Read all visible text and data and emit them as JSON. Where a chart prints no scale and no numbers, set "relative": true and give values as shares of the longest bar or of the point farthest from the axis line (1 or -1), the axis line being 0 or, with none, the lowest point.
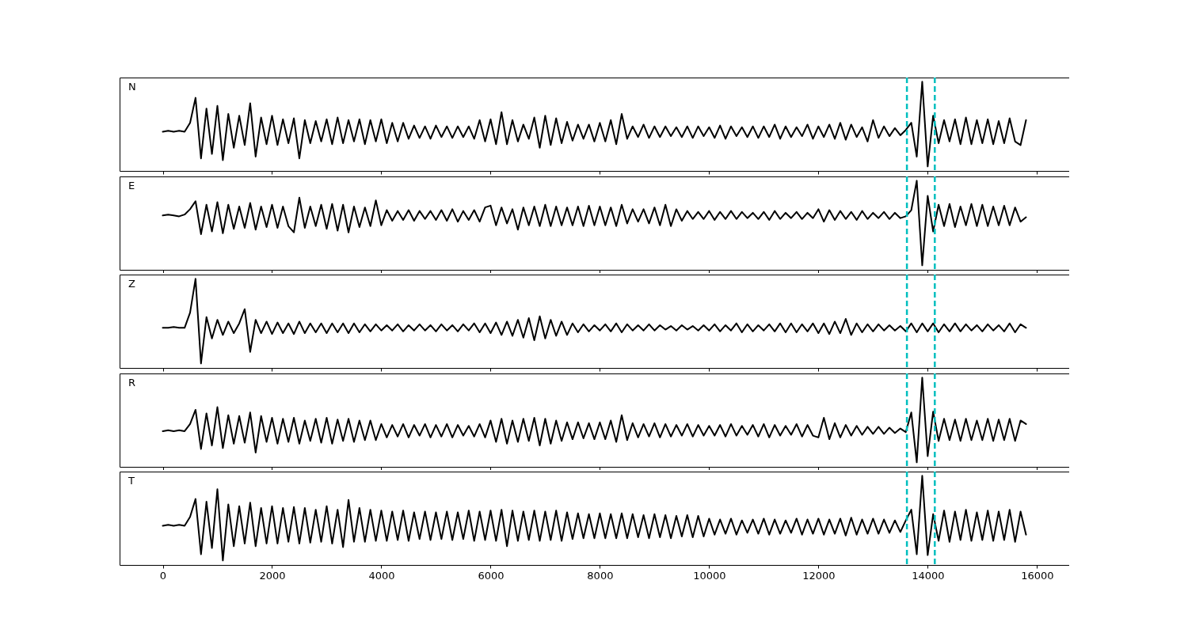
{
  "chart_data": [
    {
      "type": "line",
      "title": "N",
      "relative": true,
      "xlim": [
        -790,
        16590
      ],
      "xticks": [
        0,
        2000,
        4000,
        6000,
        8000,
        10000,
        12000,
        14000,
        16000
      ],
      "tick_labels": false,
      "ref_lines": [
        {
          "axis": "x",
          "value": 13620,
          "color": "#00bfbf",
          "line_style": "dashed"
        },
        {
          "axis": "x",
          "value": 14130,
          "color": "#00bfbf",
          "line_style": "dashed"
        }
      ],
      "x": [
        0,
        100,
        200,
        300,
        400,
        500,
        600,
        700,
        800,
        900,
        1000,
        1100,
        1200,
        1300,
        1400,
        1500,
        1600,
        1700,
        1800,
        1900,
        2000,
        2100,
        2200,
        2300,
        2400,
        2500,
        2600,
        2700,
        2800,
        2900,
        3000,
        3100,
        3200,
        3300,
        3400,
        3500,
        3600,
        3700,
        3800,
        3900,
        4000,
        4100,
        4200,
        4300,
        4400,
        4500,
        4600,
        4700,
        4800,
        4900,
        5000,
        5100,
        5200,
        5300,
        5400,
        5500,
        5600,
        5700,
        5800,
        5900,
        6000,
        6100,
        6200,
        6300,
        6400,
        6500,
        6600,
        6700,
        6800,
        6900,
        7000,
        7100,
        7200,
        7300,
        7400,
        7500,
        7600,
        7700,
        7800,
        7900,
        8000,
        8100,
        8200,
        8300,
        8400,
        8500,
        8600,
        8700,
        8800,
        8900,
        9000,
        9100,
        9200,
        9300,
        9400,
        9500,
        9600,
        9700,
        9800,
        9900,
        10000,
        10100,
        10200,
        10300,
        10400,
        10500,
        10600,
        10700,
        10800,
        10900,
        11000,
        11100,
        11200,
        11300,
        11400,
        11500,
        11600,
        11700,
        11800,
        11900,
        12000,
        12100,
        12200,
        12300,
        12400,
        12500,
        12600,
        12700,
        12800,
        12900,
        13000,
        13100,
        13200,
        13300,
        13400,
        13500,
        13600,
        13700,
        13800,
        13900,
        14000,
        14100,
        14200,
        14300,
        14400,
        14500,
        14600,
        14700,
        14800,
        14900,
        15000,
        15100,
        15200,
        15300,
        15400,
        15500,
        15600,
        15700,
        15800
      ],
      "series": [
        {
          "color": "#000000",
          "values": [
            0.44,
            0.45,
            0.44,
            0.45,
            0.44,
            0.54,
            0.82,
            0.14,
            0.7,
            0.19,
            0.73,
            0.12,
            0.64,
            0.26,
            0.62,
            0.29,
            0.76,
            0.16,
            0.6,
            0.3,
            0.62,
            0.29,
            0.58,
            0.31,
            0.59,
            0.14,
            0.57,
            0.31,
            0.56,
            0.33,
            0.58,
            0.3,
            0.6,
            0.31,
            0.57,
            0.33,
            0.58,
            0.3,
            0.57,
            0.33,
            0.58,
            0.31,
            0.54,
            0.33,
            0.54,
            0.36,
            0.51,
            0.37,
            0.5,
            0.36,
            0.51,
            0.38,
            0.5,
            0.37,
            0.5,
            0.38,
            0.5,
            0.36,
            0.57,
            0.33,
            0.58,
            0.3,
            0.66,
            0.3,
            0.57,
            0.33,
            0.52,
            0.36,
            0.6,
            0.26,
            0.62,
            0.29,
            0.59,
            0.31,
            0.55,
            0.34,
            0.52,
            0.36,
            0.52,
            0.33,
            0.54,
            0.33,
            0.57,
            0.3,
            0.64,
            0.36,
            0.5,
            0.38,
            0.52,
            0.37,
            0.5,
            0.38,
            0.5,
            0.39,
            0.49,
            0.38,
            0.5,
            0.37,
            0.5,
            0.39,
            0.49,
            0.37,
            0.51,
            0.36,
            0.5,
            0.39,
            0.49,
            0.38,
            0.5,
            0.37,
            0.5,
            0.38,
            0.52,
            0.36,
            0.5,
            0.38,
            0.49,
            0.39,
            0.52,
            0.36,
            0.5,
            0.38,
            0.52,
            0.36,
            0.54,
            0.35,
            0.52,
            0.38,
            0.49,
            0.33,
            0.57,
            0.37,
            0.5,
            0.39,
            0.48,
            0.4,
            0.46,
            0.54,
            0.16,
            1.0,
            0.05,
            0.62,
            0.31,
            0.57,
            0.33,
            0.58,
            0.3,
            0.6,
            0.3,
            0.57,
            0.31,
            0.58,
            0.3,
            0.56,
            0.31,
            0.59,
            0.33,
            0.29,
            0.57
          ]
        }
      ]
    },
    {
      "type": "line",
      "title": "E",
      "relative": true,
      "xlim": [
        -790,
        16590
      ],
      "xticks": [
        0,
        2000,
        4000,
        6000,
        8000,
        10000,
        12000,
        14000,
        16000
      ],
      "tick_labels": false,
      "ref_lines": [
        {
          "axis": "x",
          "value": 13620,
          "color": "#00bfbf",
          "line_style": "dashed"
        },
        {
          "axis": "x",
          "value": 14130,
          "color": "#00bfbf",
          "line_style": "dashed"
        }
      ],
      "x": [
        0,
        100,
        200,
        300,
        400,
        500,
        600,
        700,
        800,
        900,
        1000,
        1100,
        1200,
        1300,
        1400,
        1500,
        1600,
        1700,
        1800,
        1900,
        2000,
        2100,
        2200,
        2300,
        2400,
        2500,
        2600,
        2700,
        2800,
        2900,
        3000,
        3100,
        3200,
        3300,
        3400,
        3500,
        3600,
        3700,
        3800,
        3900,
        4000,
        4100,
        4200,
        4300,
        4400,
        4500,
        4600,
        4700,
        4800,
        4900,
        5000,
        5100,
        5200,
        5300,
        5400,
        5500,
        5600,
        5700,
        5800,
        5900,
        6000,
        6100,
        6200,
        6300,
        6400,
        6500,
        6600,
        6700,
        6800,
        6900,
        7000,
        7100,
        7200,
        7300,
        7400,
        7500,
        7600,
        7700,
        7800,
        7900,
        8000,
        8100,
        8200,
        8300,
        8400,
        8500,
        8600,
        8700,
        8800,
        8900,
        9000,
        9100,
        9200,
        9300,
        9400,
        9500,
        9600,
        9700,
        9800,
        9900,
        10000,
        10100,
        10200,
        10300,
        10400,
        10500,
        10600,
        10700,
        10800,
        10900,
        11000,
        11100,
        11200,
        11300,
        11400,
        11500,
        11600,
        11700,
        11800,
        11900,
        12000,
        12100,
        12200,
        12300,
        12400,
        12500,
        12600,
        12700,
        12800,
        12900,
        13000,
        13100,
        13200,
        13300,
        13400,
        13500,
        13600,
        13700,
        13800,
        13900,
        14000,
        14100,
        14200,
        14300,
        14400,
        14500,
        14600,
        14700,
        14800,
        14900,
        15000,
        15100,
        15200,
        15300,
        15400,
        15500,
        15600,
        15700,
        15800
      ],
      "series": [
        {
          "color": "#000000",
          "values": [
            0.61,
            0.62,
            0.61,
            0.6,
            0.62,
            0.68,
            0.77,
            0.4,
            0.73,
            0.43,
            0.76,
            0.41,
            0.73,
            0.46,
            0.71,
            0.47,
            0.75,
            0.45,
            0.71,
            0.48,
            0.73,
            0.47,
            0.71,
            0.49,
            0.42,
            0.81,
            0.47,
            0.71,
            0.49,
            0.73,
            0.46,
            0.74,
            0.44,
            0.73,
            0.42,
            0.71,
            0.48,
            0.7,
            0.49,
            0.78,
            0.5,
            0.67,
            0.55,
            0.66,
            0.56,
            0.67,
            0.55,
            0.66,
            0.57,
            0.66,
            0.56,
            0.67,
            0.55,
            0.68,
            0.54,
            0.66,
            0.56,
            0.67,
            0.54,
            0.7,
            0.72,
            0.5,
            0.7,
            0.52,
            0.68,
            0.45,
            0.7,
            0.5,
            0.71,
            0.49,
            0.73,
            0.49,
            0.71,
            0.5,
            0.7,
            0.5,
            0.71,
            0.49,
            0.72,
            0.5,
            0.71,
            0.5,
            0.7,
            0.49,
            0.73,
            0.52,
            0.68,
            0.54,
            0.68,
            0.52,
            0.7,
            0.5,
            0.73,
            0.49,
            0.68,
            0.55,
            0.66,
            0.57,
            0.65,
            0.57,
            0.66,
            0.56,
            0.65,
            0.57,
            0.66,
            0.57,
            0.65,
            0.58,
            0.64,
            0.57,
            0.65,
            0.56,
            0.66,
            0.57,
            0.64,
            0.58,
            0.65,
            0.57,
            0.64,
            0.58,
            0.68,
            0.54,
            0.67,
            0.56,
            0.66,
            0.57,
            0.65,
            0.56,
            0.66,
            0.57,
            0.64,
            0.58,
            0.65,
            0.57,
            0.64,
            0.58,
            0.6,
            0.67,
            1.0,
            0.05,
            0.83,
            0.43,
            0.73,
            0.49,
            0.74,
            0.48,
            0.71,
            0.5,
            0.74,
            0.49,
            0.73,
            0.49,
            0.71,
            0.5,
            0.72,
            0.5,
            0.7,
            0.54,
            0.59
          ]
        }
      ]
    },
    {
      "type": "line",
      "title": "Z",
      "relative": true,
      "xlim": [
        -790,
        16590
      ],
      "xticks": [
        0,
        2000,
        4000,
        6000,
        8000,
        10000,
        12000,
        14000,
        16000
      ],
      "tick_labels": false,
      "ref_lines": [
        {
          "axis": "x",
          "value": 13620,
          "color": "#00bfbf",
          "line_style": "dashed"
        },
        {
          "axis": "x",
          "value": 14130,
          "color": "#00bfbf",
          "line_style": "dashed"
        }
      ],
      "x": [
        0,
        100,
        200,
        300,
        400,
        500,
        600,
        700,
        800,
        900,
        1000,
        1100,
        1200,
        1300,
        1400,
        1500,
        1600,
        1700,
        1800,
        1900,
        2000,
        2100,
        2200,
        2300,
        2400,
        2500,
        2600,
        2700,
        2800,
        2900,
        3000,
        3100,
        3200,
        3300,
        3400,
        3500,
        3600,
        3700,
        3800,
        3900,
        4000,
        4100,
        4200,
        4300,
        4400,
        4500,
        4600,
        4700,
        4800,
        4900,
        5000,
        5100,
        5200,
        5300,
        5400,
        5500,
        5600,
        5700,
        5800,
        5900,
        6000,
        6100,
        6200,
        6300,
        6400,
        6500,
        6600,
        6700,
        6800,
        6900,
        7000,
        7100,
        7200,
        7300,
        7400,
        7500,
        7600,
        7700,
        7800,
        7900,
        8000,
        8100,
        8200,
        8300,
        8400,
        8500,
        8600,
        8700,
        8800,
        8900,
        9000,
        9100,
        9200,
        9300,
        9400,
        9500,
        9600,
        9700,
        9800,
        9900,
        10000,
        10100,
        10200,
        10300,
        10400,
        10500,
        10600,
        10700,
        10800,
        10900,
        11000,
        11100,
        11200,
        11300,
        11400,
        11500,
        11600,
        11700,
        11800,
        11900,
        12000,
        12100,
        12200,
        12300,
        12400,
        12500,
        12600,
        12700,
        12800,
        12900,
        13000,
        13100,
        13200,
        13300,
        13400,
        13500,
        13600,
        13700,
        13800,
        13900,
        14000,
        14100,
        14200,
        14300,
        14400,
        14500,
        14600,
        14700,
        14800,
        14900,
        15000,
        15100,
        15200,
        15300,
        15400,
        15500,
        15600,
        15700,
        15800
      ],
      "series": [
        {
          "color": "#000000",
          "values": [
            0.45,
            0.45,
            0.46,
            0.45,
            0.45,
            0.62,
            1.0,
            0.05,
            0.57,
            0.33,
            0.54,
            0.37,
            0.52,
            0.39,
            0.5,
            0.66,
            0.18,
            0.54,
            0.39,
            0.52,
            0.38,
            0.51,
            0.39,
            0.5,
            0.38,
            0.52,
            0.39,
            0.5,
            0.4,
            0.5,
            0.39,
            0.5,
            0.4,
            0.5,
            0.39,
            0.5,
            0.4,
            0.49,
            0.41,
            0.49,
            0.42,
            0.48,
            0.42,
            0.49,
            0.41,
            0.48,
            0.42,
            0.49,
            0.42,
            0.48,
            0.41,
            0.49,
            0.42,
            0.48,
            0.41,
            0.49,
            0.42,
            0.5,
            0.4,
            0.5,
            0.39,
            0.51,
            0.37,
            0.52,
            0.36,
            0.54,
            0.34,
            0.56,
            0.31,
            0.58,
            0.33,
            0.54,
            0.36,
            0.52,
            0.37,
            0.5,
            0.4,
            0.49,
            0.41,
            0.48,
            0.42,
            0.49,
            0.41,
            0.5,
            0.4,
            0.49,
            0.42,
            0.48,
            0.42,
            0.49,
            0.42,
            0.48,
            0.43,
            0.47,
            0.42,
            0.48,
            0.43,
            0.47,
            0.42,
            0.48,
            0.42,
            0.49,
            0.41,
            0.48,
            0.42,
            0.5,
            0.4,
            0.49,
            0.41,
            0.48,
            0.42,
            0.49,
            0.41,
            0.5,
            0.4,
            0.5,
            0.4,
            0.49,
            0.41,
            0.5,
            0.39,
            0.5,
            0.38,
            0.52,
            0.39,
            0.55,
            0.37,
            0.5,
            0.4,
            0.49,
            0.41,
            0.49,
            0.42,
            0.48,
            0.42,
            0.47,
            0.41,
            0.5,
            0.4,
            0.5,
            0.41,
            0.5,
            0.4,
            0.49,
            0.41,
            0.5,
            0.41,
            0.49,
            0.42,
            0.48,
            0.41,
            0.49,
            0.42,
            0.48,
            0.41,
            0.5,
            0.4,
            0.49,
            0.45
          ]
        }
      ]
    },
    {
      "type": "line",
      "title": "R",
      "relative": true,
      "xlim": [
        -790,
        16590
      ],
      "xticks": [
        0,
        2000,
        4000,
        6000,
        8000,
        10000,
        12000,
        14000,
        16000
      ],
      "tick_labels": false,
      "ref_lines": [
        {
          "axis": "x",
          "value": 13620,
          "color": "#00bfbf",
          "line_style": "dashed"
        },
        {
          "axis": "x",
          "value": 14130,
          "color": "#00bfbf",
          "line_style": "dashed"
        }
      ],
      "x": [
        0,
        100,
        200,
        300,
        400,
        500,
        600,
        700,
        800,
        900,
        1000,
        1100,
        1200,
        1300,
        1400,
        1500,
        1600,
        1700,
        1800,
        1900,
        2000,
        2100,
        2200,
        2300,
        2400,
        2500,
        2600,
        2700,
        2800,
        2900,
        3000,
        3100,
        3200,
        3300,
        3400,
        3500,
        3600,
        3700,
        3800,
        3900,
        4000,
        4100,
        4200,
        4300,
        4400,
        4500,
        4600,
        4700,
        4800,
        4900,
        5000,
        5100,
        5200,
        5300,
        5400,
        5500,
        5600,
        5700,
        5800,
        5900,
        6000,
        6100,
        6200,
        6300,
        6400,
        6500,
        6600,
        6700,
        6800,
        6900,
        7000,
        7100,
        7200,
        7300,
        7400,
        7500,
        7600,
        7700,
        7800,
        7900,
        8000,
        8100,
        8200,
        8300,
        8400,
        8500,
        8600,
        8700,
        8800,
        8900,
        9000,
        9100,
        9200,
        9300,
        9400,
        9500,
        9600,
        9700,
        9800,
        9900,
        10000,
        10100,
        10200,
        10300,
        10400,
        10500,
        10600,
        10700,
        10800,
        10900,
        11000,
        11100,
        11200,
        11300,
        11400,
        11500,
        11600,
        11700,
        11800,
        11900,
        12000,
        12100,
        12200,
        12300,
        12400,
        12500,
        12600,
        12700,
        12800,
        12900,
        13000,
        13100,
        13200,
        13300,
        13400,
        13500,
        13600,
        13700,
        13800,
        13900,
        14000,
        14100,
        14200,
        14300,
        14400,
        14500,
        14600,
        14700,
        14800,
        14900,
        15000,
        15100,
        15200,
        15300,
        15400,
        15500,
        15600,
        15700,
        15800
      ],
      "series": [
        {
          "color": "#000000",
          "values": [
            0.4,
            0.41,
            0.4,
            0.41,
            0.4,
            0.48,
            0.64,
            0.2,
            0.6,
            0.24,
            0.67,
            0.21,
            0.58,
            0.26,
            0.57,
            0.27,
            0.61,
            0.16,
            0.57,
            0.28,
            0.55,
            0.26,
            0.54,
            0.28,
            0.55,
            0.26,
            0.52,
            0.29,
            0.54,
            0.27,
            0.55,
            0.26,
            0.53,
            0.29,
            0.54,
            0.28,
            0.52,
            0.3,
            0.52,
            0.3,
            0.48,
            0.33,
            0.47,
            0.34,
            0.48,
            0.33,
            0.47,
            0.35,
            0.48,
            0.33,
            0.47,
            0.34,
            0.48,
            0.33,
            0.47,
            0.35,
            0.46,
            0.34,
            0.48,
            0.33,
            0.52,
            0.28,
            0.54,
            0.26,
            0.52,
            0.28,
            0.54,
            0.29,
            0.55,
            0.24,
            0.54,
            0.26,
            0.52,
            0.29,
            0.5,
            0.31,
            0.5,
            0.32,
            0.49,
            0.31,
            0.5,
            0.31,
            0.52,
            0.28,
            0.58,
            0.3,
            0.49,
            0.33,
            0.48,
            0.34,
            0.49,
            0.33,
            0.48,
            0.34,
            0.47,
            0.35,
            0.48,
            0.34,
            0.47,
            0.35,
            0.46,
            0.35,
            0.47,
            0.34,
            0.48,
            0.35,
            0.46,
            0.36,
            0.47,
            0.34,
            0.48,
            0.33,
            0.47,
            0.35,
            0.46,
            0.36,
            0.48,
            0.34,
            0.47,
            0.35,
            0.33,
            0.55,
            0.31,
            0.49,
            0.33,
            0.47,
            0.35,
            0.46,
            0.36,
            0.45,
            0.37,
            0.45,
            0.37,
            0.44,
            0.38,
            0.43,
            0.39,
            0.61,
            0.05,
            1.0,
            0.12,
            0.62,
            0.29,
            0.54,
            0.3,
            0.53,
            0.29,
            0.54,
            0.3,
            0.52,
            0.3,
            0.54,
            0.29,
            0.53,
            0.3,
            0.54,
            0.29,
            0.52,
            0.48
          ]
        }
      ]
    },
    {
      "type": "line",
      "title": "T",
      "relative": true,
      "xlim": [
        -790,
        16590
      ],
      "xticks": [
        0,
        2000,
        4000,
        6000,
        8000,
        10000,
        12000,
        14000,
        16000
      ],
      "tick_labels": "x",
      "ref_lines": [
        {
          "axis": "x",
          "value": 13620,
          "color": "#00bfbf",
          "line_style": "dashed"
        },
        {
          "axis": "x",
          "value": 14130,
          "color": "#00bfbf",
          "line_style": "dashed"
        }
      ],
      "x": [
        0,
        100,
        200,
        300,
        400,
        500,
        600,
        700,
        800,
        900,
        1000,
        1100,
        1200,
        1300,
        1400,
        1500,
        1600,
        1700,
        1800,
        1900,
        2000,
        2100,
        2200,
        2300,
        2400,
        2500,
        2600,
        2700,
        2800,
        2900,
        3000,
        3100,
        3200,
        3300,
        3400,
        3500,
        3600,
        3700,
        3800,
        3900,
        4000,
        4100,
        4200,
        4300,
        4400,
        4500,
        4600,
        4700,
        4800,
        4900,
        5000,
        5100,
        5200,
        5300,
        5400,
        5500,
        5600,
        5700,
        5800,
        5900,
        6000,
        6100,
        6200,
        6300,
        6400,
        6500,
        6600,
        6700,
        6800,
        6900,
        7000,
        7100,
        7200,
        7300,
        7400,
        7500,
        7600,
        7700,
        7800,
        7900,
        8000,
        8100,
        8200,
        8300,
        8400,
        8500,
        8600,
        8700,
        8800,
        8900,
        9000,
        9100,
        9200,
        9300,
        9400,
        9500,
        9600,
        9700,
        9800,
        9900,
        10000,
        10100,
        10200,
        10300,
        10400,
        10500,
        10600,
        10700,
        10800,
        10900,
        11000,
        11100,
        11200,
        11300,
        11400,
        11500,
        11600,
        11700,
        11800,
        11900,
        12000,
        12100,
        12200,
        12300,
        12400,
        12500,
        12600,
        12700,
        12800,
        12900,
        13000,
        13100,
        13200,
        13300,
        13400,
        13500,
        13600,
        13700,
        13800,
        13900,
        14000,
        14100,
        14200,
        14300,
        14400,
        14500,
        14600,
        14700,
        14800,
        14900,
        15000,
        15100,
        15200,
        15300,
        15400,
        15500,
        15600,
        15700,
        15800
      ],
      "series": [
        {
          "color": "#000000",
          "values": [
            0.44,
            0.45,
            0.44,
            0.45,
            0.44,
            0.54,
            0.74,
            0.12,
            0.71,
            0.19,
            0.85,
            0.05,
            0.68,
            0.21,
            0.66,
            0.24,
            0.7,
            0.21,
            0.64,
            0.24,
            0.66,
            0.24,
            0.64,
            0.26,
            0.65,
            0.24,
            0.64,
            0.25,
            0.62,
            0.26,
            0.66,
            0.24,
            0.62,
            0.2,
            0.73,
            0.26,
            0.64,
            0.26,
            0.62,
            0.27,
            0.61,
            0.27,
            0.6,
            0.28,
            0.61,
            0.27,
            0.59,
            0.29,
            0.6,
            0.28,
            0.59,
            0.29,
            0.6,
            0.28,
            0.59,
            0.29,
            0.61,
            0.27,
            0.6,
            0.28,
            0.61,
            0.27,
            0.62,
            0.21,
            0.61,
            0.27,
            0.6,
            0.28,
            0.61,
            0.27,
            0.6,
            0.28,
            0.61,
            0.27,
            0.59,
            0.29,
            0.58,
            0.3,
            0.57,
            0.3,
            0.58,
            0.3,
            0.57,
            0.3,
            0.58,
            0.3,
            0.57,
            0.31,
            0.56,
            0.3,
            0.57,
            0.31,
            0.56,
            0.3,
            0.55,
            0.32,
            0.56,
            0.31,
            0.55,
            0.32,
            0.52,
            0.34,
            0.51,
            0.35,
            0.52,
            0.34,
            0.5,
            0.36,
            0.51,
            0.35,
            0.52,
            0.34,
            0.51,
            0.35,
            0.5,
            0.36,
            0.52,
            0.34,
            0.51,
            0.35,
            0.52,
            0.34,
            0.51,
            0.35,
            0.52,
            0.33,
            0.53,
            0.34,
            0.51,
            0.35,
            0.52,
            0.35,
            0.51,
            0.36,
            0.5,
            0.37,
            0.5,
            0.62,
            0.12,
            1.0,
            0.11,
            0.57,
            0.27,
            0.61,
            0.26,
            0.6,
            0.28,
            0.62,
            0.27,
            0.59,
            0.28,
            0.61,
            0.27,
            0.6,
            0.28,
            0.62,
            0.26,
            0.6,
            0.34
          ]
        }
      ]
    }
  ]
}
